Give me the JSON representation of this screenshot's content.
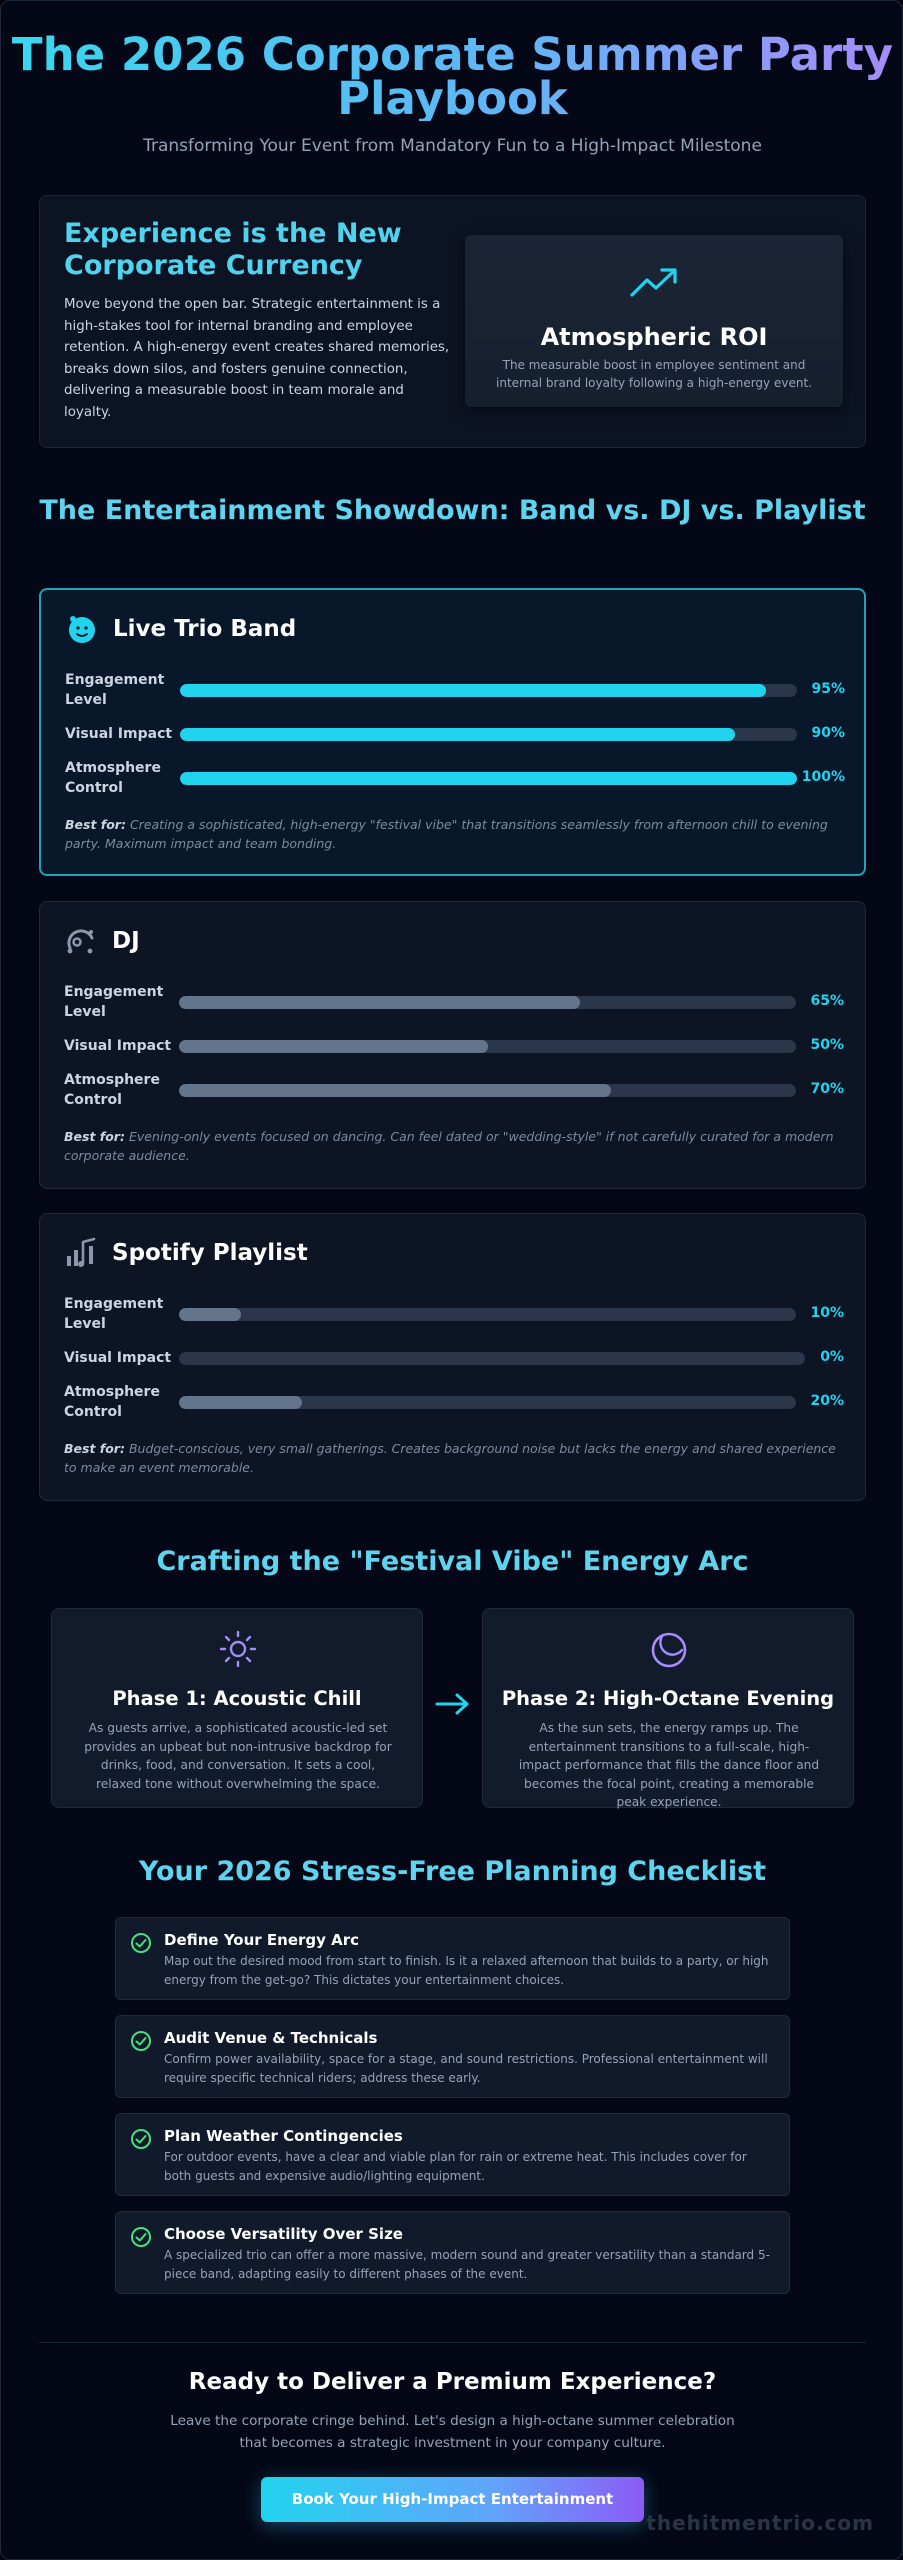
{
  "hero": {
    "title": "The 2026 Corporate Summer Party Playbook",
    "subtitle": "Transforming Your Event from Mandatory Fun to a High-Impact Milestone"
  },
  "intro": {
    "title": "Experience is the New Corporate Currency",
    "text": "Move beyond the open bar. Strategic entertainment is a high-stakes tool for internal branding and employee retention. A high-energy event creates shared memories, breaks down silos, and fosters genuine connection, delivering a measurable boost in team morale and loyalty.",
    "roi_icon": "trending-up-icon",
    "roi_title": "Atmospheric ROI",
    "roi_text": "The measurable boost in employee sentiment and internal brand loyalty following a high-energy event."
  },
  "showdown": {
    "title": "The Entertainment Showdown: Band vs. DJ vs. Playlist",
    "best_for_label": "Best for:",
    "options": [
      {
        "name": "Live Trio Band",
        "icon": "band-icon",
        "accent": "#22d3ee",
        "metrics": [
          {
            "label": "Engagement Level",
            "value": 95,
            "display": "95%"
          },
          {
            "label": "Visual Impact",
            "value": 90,
            "display": "90%"
          },
          {
            "label": "Atmosphere Control",
            "value": 100,
            "display": "100%"
          }
        ],
        "best_for": "Creating a sophisticated, high-energy \"festival vibe\" that transitions seamlessly from afternoon chill to evening party. Maximum impact and team bonding."
      },
      {
        "name": "DJ",
        "icon": "dj-icon",
        "accent": "#64748b",
        "metrics": [
          {
            "label": "Engagement Level",
            "value": 65,
            "display": "65%"
          },
          {
            "label": "Visual Impact",
            "value": 50,
            "display": "50%"
          },
          {
            "label": "Atmosphere Control",
            "value": 70,
            "display": "70%"
          }
        ],
        "best_for": "Evening-only events focused on dancing. Can feel dated or \"wedding-style\" if not carefully curated for a modern corporate audience."
      },
      {
        "name": "Spotify Playlist",
        "icon": "playlist-icon",
        "accent": "#64748b",
        "metrics": [
          {
            "label": "Engagement Level",
            "value": 10,
            "display": "10%"
          },
          {
            "label": "Visual Impact",
            "value": 0,
            "display": "0%"
          },
          {
            "label": "Atmosphere Control",
            "value": 20,
            "display": "20%"
          }
        ],
        "best_for": "Budget-conscious, very small gatherings. Creates background noise but lacks the energy and shared experience to make an event memorable."
      }
    ]
  },
  "energy_arc": {
    "title": "Crafting the \"Festival Vibe\" Energy Arc",
    "phases": [
      {
        "icon": "sun-icon",
        "title": "Phase 1: Acoustic Chill",
        "text": "As guests arrive, a sophisticated acoustic-led set provides an upbeat but non-intrusive backdrop for drinks, food, and conversation. It sets a cool, relaxed tone without overwhelming the space."
      },
      {
        "icon": "moon-icon",
        "title": "Phase 2: High-Octane Evening",
        "text": "As the sun sets, the energy ramps up. The entertainment transitions to a full-scale, high-impact performance that fills the dance floor and becomes the focal point, creating a memorable peak experience."
      }
    ]
  },
  "checklist": {
    "title": "Your 2026 Stress-Free Planning Checklist",
    "items": [
      {
        "title": "Define Your Energy Arc",
        "text": "Map out the desired mood from start to finish. Is it a relaxed afternoon that builds to a party, or high energy from the get-go? This dictates your entertainment choices."
      },
      {
        "title": "Audit Venue & Technicals",
        "text": "Confirm power availability, space for a stage, and sound restrictions. Professional entertainment will require specific technical riders; address these early."
      },
      {
        "title": "Plan Weather Contingencies",
        "text": "For outdoor events, have a clear and viable plan for rain or extreme heat. This includes cover for both guests and expensive audio/lighting equipment."
      },
      {
        "title": "Choose Versatility Over Size",
        "text": "A specialized trio can offer a more massive, modern sound and greater versatility than a standard 5-piece band, adapting easily to different phases of the event."
      }
    ]
  },
  "cta": {
    "title": "Ready to Deliver a Premium Experience?",
    "text": "Leave the corporate cringe behind. Let's design a high-octane summer celebration that becomes a strategic investment in your company culture.",
    "button": "Book Your High-Impact Entertainment"
  },
  "watermark": "thehitmentrio.com",
  "colors": {
    "accent_cyan": "#22d3ee",
    "accent_violet": "#8b5cf6",
    "muted_bar": "#64748b",
    "check_green": "#4ade80",
    "background": "#02050f"
  }
}
